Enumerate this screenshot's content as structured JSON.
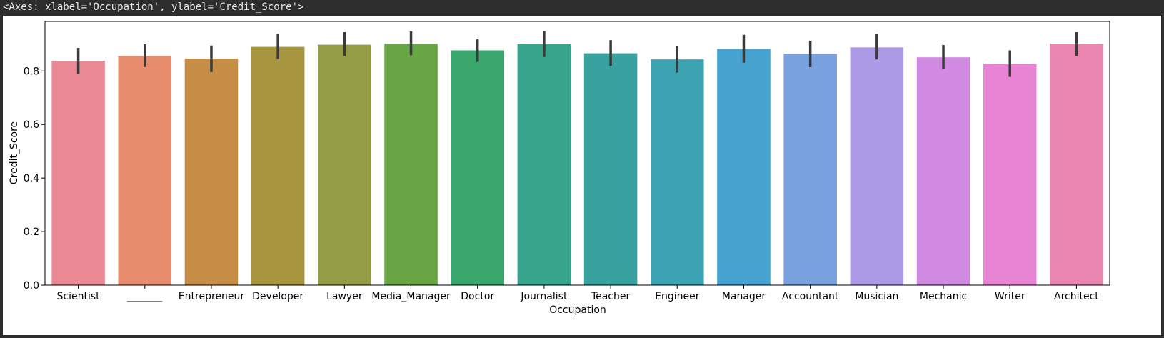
{
  "output": {
    "repr_text": "<Axes: xlabel='Occupation', ylabel='Credit_Score'>"
  },
  "chart_data": {
    "type": "bar",
    "title": "",
    "xlabel": "Occupation",
    "ylabel": "Credit_Score",
    "ylim": [
      0,
      0.985
    ],
    "yticks": [
      0.0,
      0.2,
      0.4,
      0.6,
      0.8
    ],
    "ytick_labels": [
      "0.0",
      "0.2",
      "0.4",
      "0.6",
      "0.8"
    ],
    "grid": false,
    "legend": "none",
    "categories": [
      "Scientist",
      "_______",
      "Entrepreneur",
      "Developer",
      "Lawyer",
      "Media_Manager",
      "Doctor",
      "Journalist",
      "Teacher",
      "Engineer",
      "Manager",
      "Accountant",
      "Musician",
      "Mechanic",
      "Writer",
      "Architect"
    ],
    "values": [
      0.838,
      0.856,
      0.846,
      0.89,
      0.898,
      0.901,
      0.877,
      0.9,
      0.866,
      0.843,
      0.882,
      0.864,
      0.888,
      0.851,
      0.825,
      0.902
    ],
    "error_low": [
      0.788,
      0.815,
      0.796,
      0.845,
      0.856,
      0.859,
      0.834,
      0.852,
      0.819,
      0.794,
      0.831,
      0.814,
      0.843,
      0.808,
      0.778,
      0.856
    ],
    "error_high": [
      0.886,
      0.9,
      0.895,
      0.938,
      0.945,
      0.948,
      0.918,
      0.948,
      0.915,
      0.893,
      0.935,
      0.913,
      0.938,
      0.897,
      0.877,
      0.945
    ],
    "colors": [
      "#eb8a94",
      "#e88c6e",
      "#c68d46",
      "#a7963f",
      "#949d46",
      "#68a545",
      "#3aa86c",
      "#37a48c",
      "#38a39e",
      "#3ca3b2",
      "#46a2cf",
      "#78a1de",
      "#ad9ae6",
      "#d18ae2",
      "#e884d4",
      "#ea87b1"
    ],
    "error_color": "#3a3a3a"
  }
}
